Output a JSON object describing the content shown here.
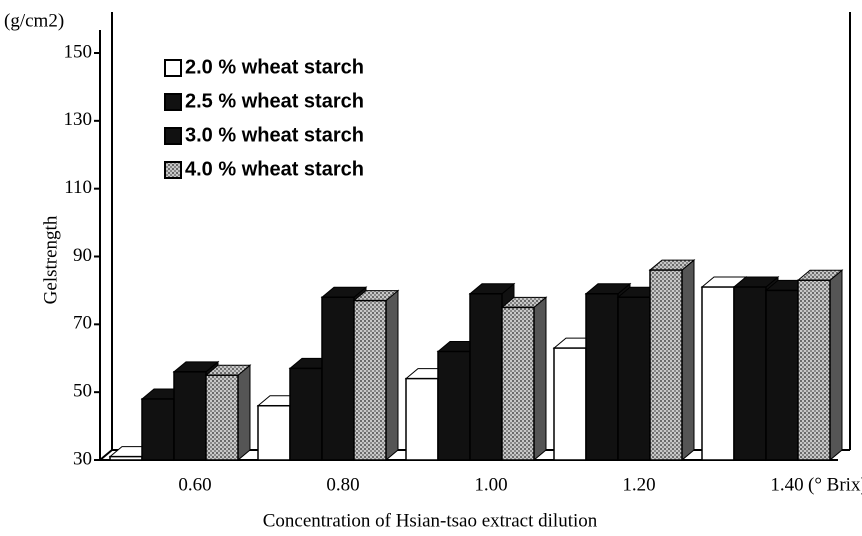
{
  "chart_data": {
    "type": "bar3d",
    "y_unit": "(g/cm2)",
    "ylabel": "Gelstrength",
    "xlabel": "Concentration of Hsian-tsao extract dilution",
    "x_unit": "(° Brix)",
    "categories": [
      "0.60",
      "0.80",
      "1.00",
      "1.20",
      "1.40"
    ],
    "series": [
      {
        "name": "2.0 % wheat starch",
        "color": "#ffffff",
        "values": [
          31,
          46,
          54,
          63,
          81
        ]
      },
      {
        "name": "2.5 % wheat starch",
        "color": "#111111",
        "values": [
          48,
          57,
          62,
          79,
          81
        ]
      },
      {
        "name": "3.0 % wheat starch",
        "color": "#111111",
        "values": [
          56,
          78,
          79,
          78,
          80
        ]
      },
      {
        "name": "4.0 % wheat starch",
        "color": "#9a9a9a",
        "values": [
          55,
          77,
          75,
          86,
          83
        ]
      }
    ],
    "ylim": [
      30,
      150
    ],
    "yticks": [
      30,
      50,
      70,
      90,
      110,
      130,
      150
    ]
  }
}
